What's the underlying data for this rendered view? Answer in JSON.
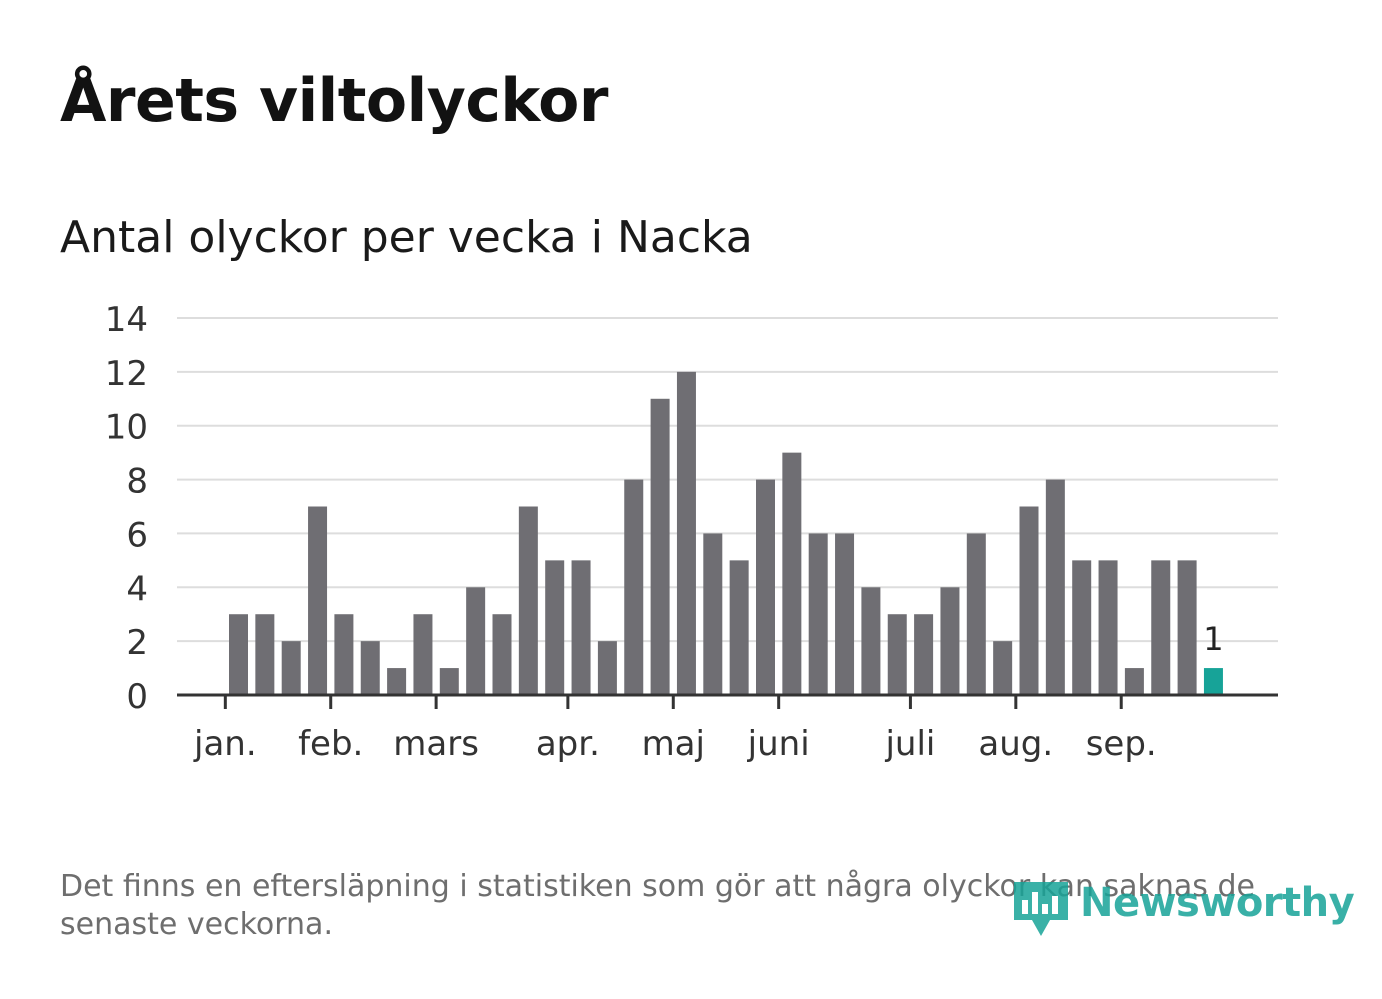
{
  "title": "Årets viltolyckor",
  "footnote": "Det finns en eftersläpning i statistiken som gör att några olyckor kan saknas de senaste veckorna.",
  "brand": {
    "name": "Newsworthy",
    "color": "#17a398"
  },
  "colors": {
    "bar": "#6f6e73",
    "highlight": "#17a398",
    "grid": "#dddddd",
    "axis": "#333333"
  },
  "chart_data": {
    "type": "bar",
    "title": "Antal olyckor per vecka i Nacka",
    "xlabel": "",
    "ylabel": "",
    "ylim": [
      0,
      14
    ],
    "yticks": [
      0,
      2,
      4,
      6,
      8,
      10,
      12,
      14
    ],
    "grid": true,
    "x_index_range": [
      0,
      42
    ],
    "values": [
      3,
      3,
      2,
      7,
      3,
      2,
      1,
      3,
      1,
      4,
      3,
      7,
      5,
      5,
      2,
      8,
      11,
      12,
      6,
      5,
      8,
      9,
      6,
      6,
      4,
      3,
      3,
      4,
      6,
      2,
      7,
      8,
      5,
      5,
      1,
      5,
      5,
      1
    ],
    "highlight_index": 37,
    "highlight_label": "1",
    "month_ticks": [
      {
        "label": "jan.",
        "index": -0.5
      },
      {
        "label": "feb.",
        "index": 3.5
      },
      {
        "label": "mars",
        "index": 7.5
      },
      {
        "label": "apr.",
        "index": 12.5
      },
      {
        "label": "maj",
        "index": 16.5
      },
      {
        "label": "juni",
        "index": 20.5
      },
      {
        "label": "juli",
        "index": 25.5
      },
      {
        "label": "aug.",
        "index": 29.5
      },
      {
        "label": "sep.",
        "index": 33.5
      }
    ]
  }
}
